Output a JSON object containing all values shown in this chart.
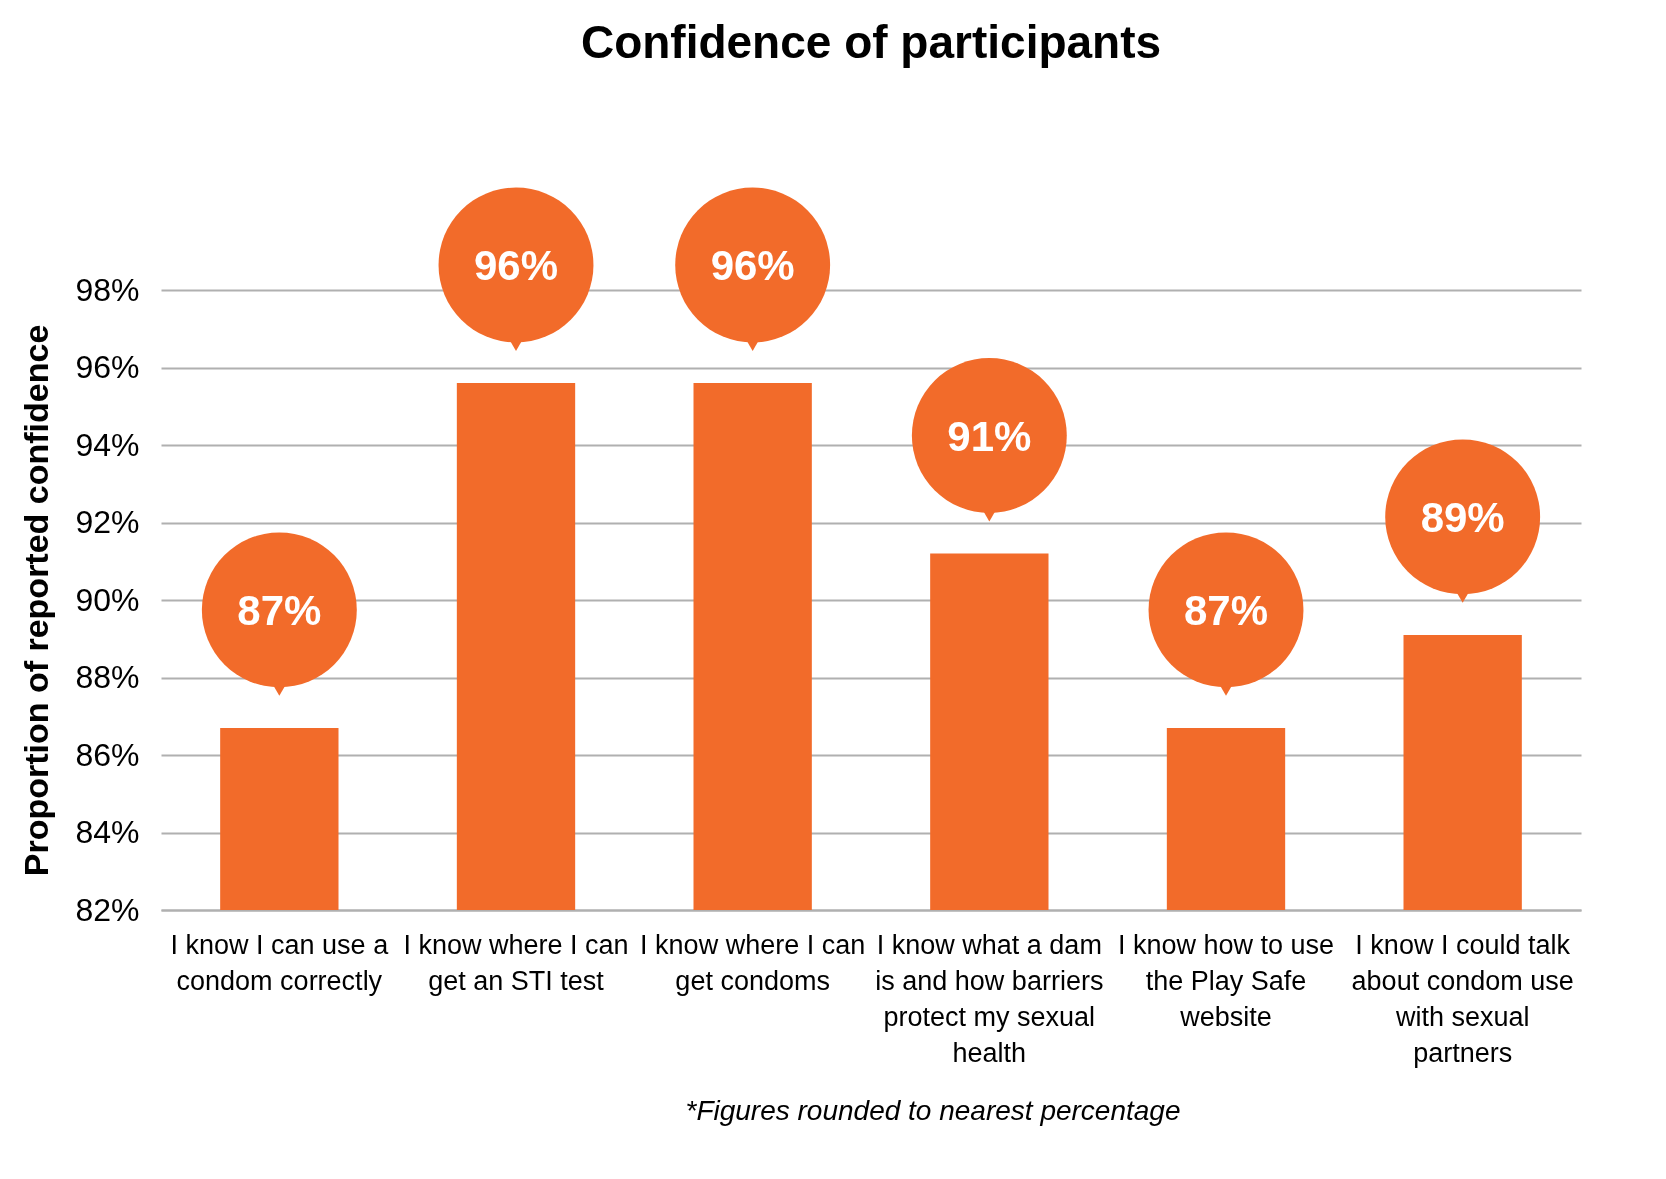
{
  "chart_data": {
    "type": "bar",
    "title": "Confidence of participants",
    "ylabel": "Proportion of reported confidence",
    "categories": [
      "I know I can use a condom correctly",
      "I know where I can get an STI test",
      "I know where I can get condoms",
      "I know what a dam is and how barriers protect my sexual health",
      "I know how to use the Play Safe website",
      "I know I could talk about condom use with sexual partners"
    ],
    "values": [
      86.7,
      95.6,
      95.6,
      91.2,
      86.7,
      89.1
    ],
    "value_labels": [
      "87%",
      "96%",
      "96%",
      "91%",
      "87%",
      "89%"
    ],
    "color": "#f26b2a",
    "ylim": [
      82,
      98
    ],
    "yticks": [
      {
        "value": 82,
        "label": "82%"
      },
      {
        "value": 84,
        "label": "84%"
      },
      {
        "value": 86,
        "label": "86%"
      },
      {
        "value": 88,
        "label": "88%"
      },
      {
        "value": 90,
        "label": "90%"
      },
      {
        "value": 92,
        "label": "92%"
      },
      {
        "value": 94,
        "label": "94%"
      },
      {
        "value": 96,
        "label": "96%"
      },
      {
        "value": 98,
        "label": "98%"
      }
    ],
    "grid": "y",
    "annotations": [
      "*Figures rounded to nearest percentage"
    ]
  }
}
